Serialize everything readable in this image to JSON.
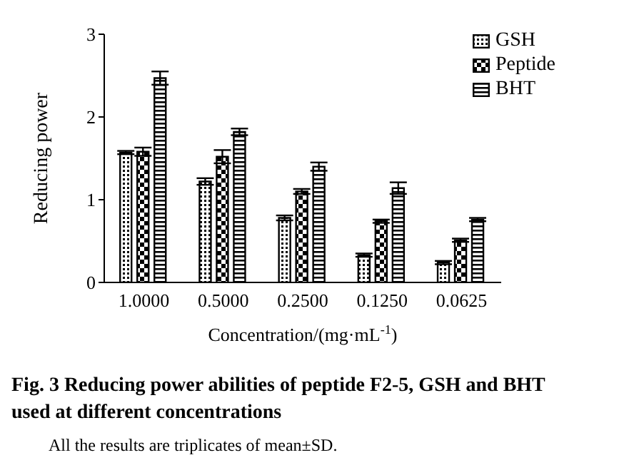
{
  "chart_data": {
    "type": "bar",
    "xlabel": "Concentration/(mg·mL$^{-1}$)",
    "ylabel": "Reducing power",
    "categories": [
      "1.0000",
      "0.5000",
      "0.2500",
      "0.1250",
      "0.0625"
    ],
    "series": [
      {
        "name": "GSH",
        "color": "#000000",
        "values": [
          1.57,
          1.22,
          0.78,
          0.33,
          0.24
        ],
        "errors": [
          0.02,
          0.04,
          0.03,
          0.02,
          0.02
        ]
      },
      {
        "name": "Peptide",
        "color": "#000000",
        "values": [
          1.58,
          1.52,
          1.1,
          0.74,
          0.51
        ],
        "errors": [
          0.05,
          0.08,
          0.03,
          0.02,
          0.02
        ]
      },
      {
        "name": "BHT",
        "color": "#000000",
        "values": [
          2.47,
          1.82,
          1.4,
          1.14,
          0.76
        ],
        "errors": [
          0.08,
          0.04,
          0.05,
          0.07,
          0.02
        ]
      }
    ],
    "ylim": [
      0,
      3
    ],
    "yticks": [
      0,
      1,
      2,
      3
    ],
    "grid": false,
    "legend": "top right",
    "annotations": [
      "Fig. 3  Reducing power abilities of peptide F2-5, GSH and BHT used at different concentrations",
      "All the results are triplicates of mean±SD."
    ]
  }
}
